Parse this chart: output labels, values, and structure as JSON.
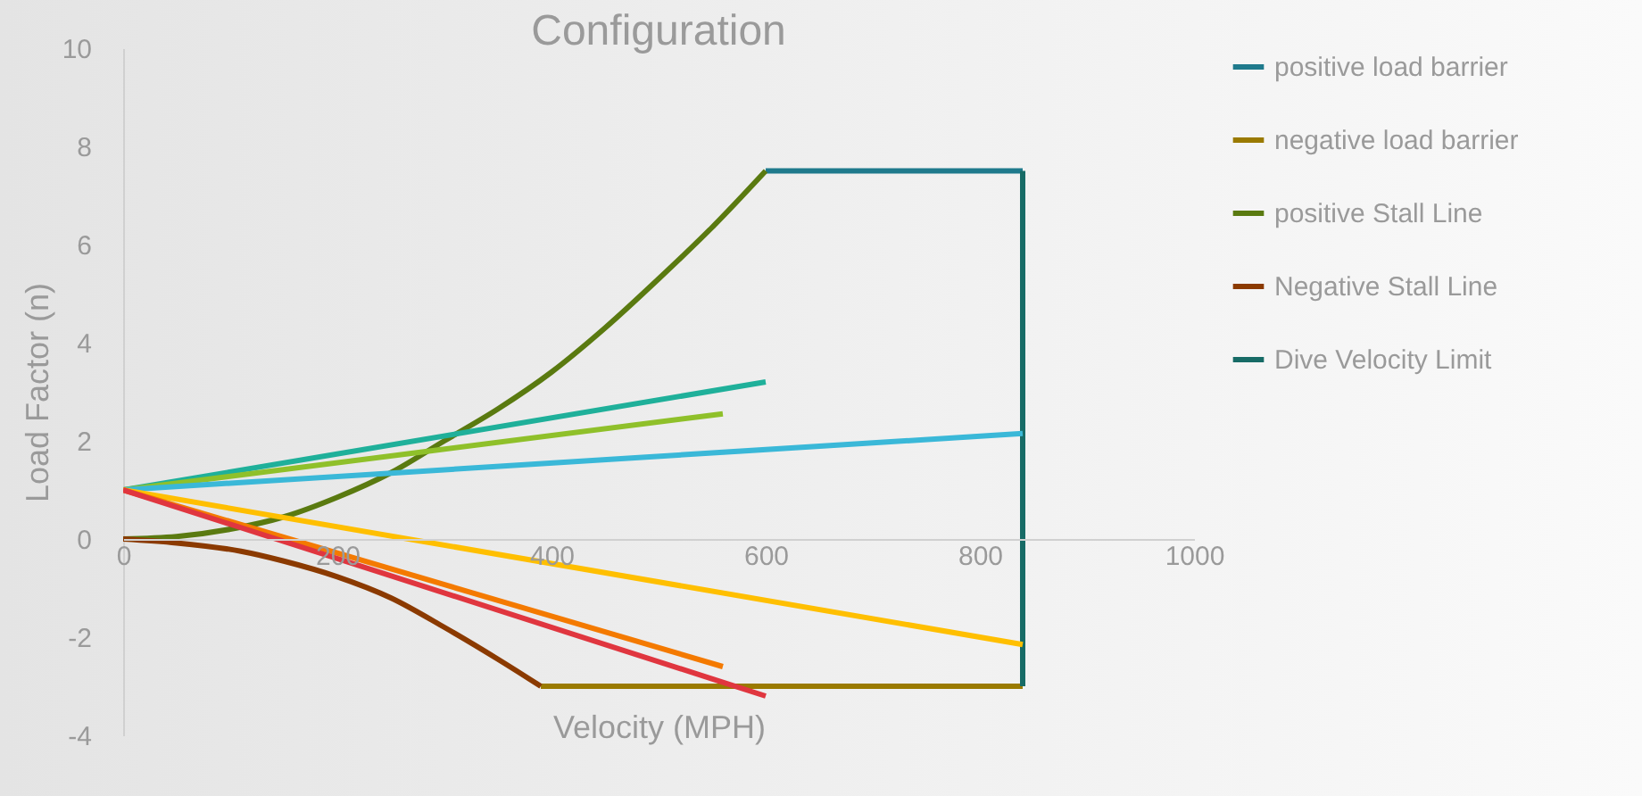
{
  "chart_data": {
    "type": "line",
    "title": "Configuration",
    "xlabel": "Velocity (MPH)",
    "ylabel": "Load Factor (n)",
    "xlim": [
      0,
      1000
    ],
    "ylim": [
      -4,
      10
    ],
    "xticks": [
      0,
      200,
      400,
      600,
      800,
      1000
    ],
    "yticks": [
      -4,
      -2,
      0,
      2,
      4,
      6,
      8,
      10
    ],
    "legend": "right",
    "series": [
      {
        "name": "positive load barrier",
        "color": "#1f7a8c",
        "x": [
          600,
          840
        ],
        "values": [
          7.5,
          7.5
        ]
      },
      {
        "name": "negative load barrier",
        "color": "#9a7a00",
        "x": [
          390,
          840
        ],
        "values": [
          -3,
          -3
        ]
      },
      {
        "name": "positive Stall Line",
        "color": "#5a7a10",
        "x": [
          0,
          50,
          100,
          150,
          200,
          250,
          300,
          350,
          400,
          450,
          500,
          550,
          600
        ],
        "values": [
          0,
          0.05,
          0.2,
          0.45,
          0.85,
          1.35,
          2.0,
          2.65,
          3.4,
          4.3,
          5.3,
          6.35,
          7.5
        ]
      },
      {
        "name": "Negative Stall Line",
        "color": "#8b3a00",
        "x": [
          0,
          50,
          110,
          150,
          200,
          250,
          300,
          350,
          390
        ],
        "values": [
          0,
          -0.08,
          -0.25,
          -0.45,
          -0.77,
          -1.2,
          -1.8,
          -2.45,
          -3
        ]
      },
      {
        "name": "Dive Velocity Limit",
        "color": "#176b66",
        "x": [
          840,
          840
        ],
        "values": [
          7.5,
          -3
        ]
      },
      {
        "color": "#1fb09a",
        "x": [
          0,
          600
        ],
        "values": [
          1,
          3.2
        ]
      },
      {
        "color": "#8fc02a",
        "x": [
          0,
          560
        ],
        "values": [
          1,
          2.55
        ]
      },
      {
        "color": "#3ab8d8",
        "x": [
          0,
          840
        ],
        "values": [
          1,
          2.15
        ]
      },
      {
        "color": "#ffbf00",
        "x": [
          0,
          840
        ],
        "values": [
          1,
          -2.15
        ]
      },
      {
        "color": "#f47a00",
        "x": [
          0,
          560
        ],
        "values": [
          1,
          -2.6
        ]
      },
      {
        "color": "#e0363f",
        "x": [
          0,
          600
        ],
        "values": [
          1,
          -3.2
        ]
      }
    ]
  }
}
